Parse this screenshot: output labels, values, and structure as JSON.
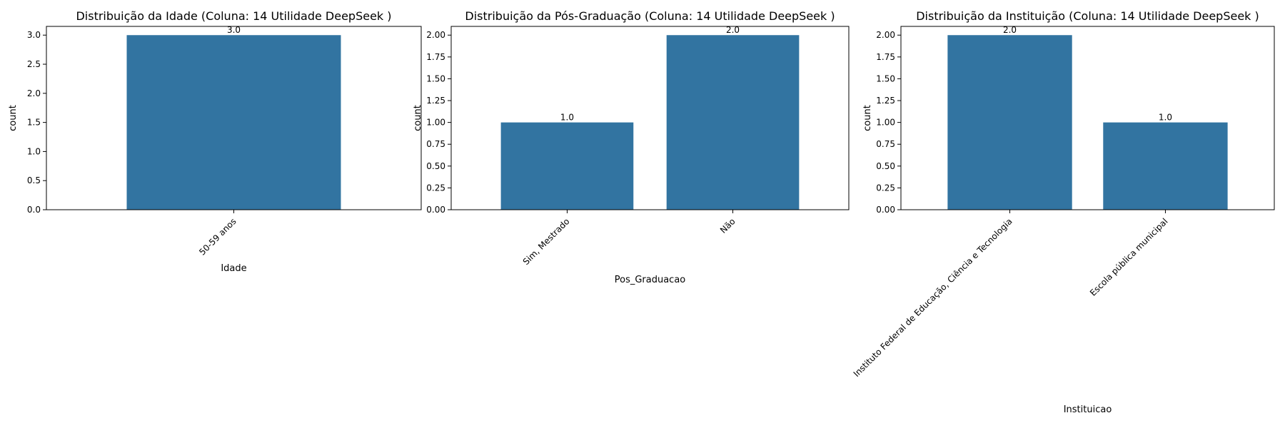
{
  "chart_data": [
    {
      "type": "bar",
      "title": "Distribuição da Idade (Coluna: 14 Utilidade DeepSeek )",
      "xlabel": "Idade",
      "ylabel": "count",
      "categories": [
        "50-59 anos"
      ],
      "values": [
        3.0
      ],
      "value_labels": [
        "3.0"
      ],
      "ylim": [
        0,
        3.15
      ],
      "yticks": [
        0,
        0.5,
        1.0,
        1.5,
        2.0,
        2.5,
        3.0
      ],
      "ytick_labels": [
        "0.0",
        "0.5",
        "1.0",
        "1.5",
        "2.0",
        "2.5",
        "3.0"
      ],
      "grid": false,
      "bar_color": "#3274a1"
    },
    {
      "type": "bar",
      "title": "Distribuição da Pós-Graduação (Coluna: 14 Utilidade DeepSeek )",
      "xlabel": "Pos_Graduacao",
      "ylabel": "count",
      "categories": [
        "Sim, Mestrado",
        "Não"
      ],
      "values": [
        1.0,
        2.0
      ],
      "value_labels": [
        "1.0",
        "2.0"
      ],
      "ylim": [
        0,
        2.1
      ],
      "yticks": [
        0,
        0.25,
        0.5,
        0.75,
        1.0,
        1.25,
        1.5,
        1.75,
        2.0
      ],
      "ytick_labels": [
        "0.00",
        "0.25",
        "0.50",
        "0.75",
        "1.00",
        "1.25",
        "1.50",
        "1.75",
        "2.00"
      ],
      "grid": false,
      "bar_color": "#3274a1"
    },
    {
      "type": "bar",
      "title": "Distribuição da Instituição (Coluna: 14 Utilidade DeepSeek )",
      "xlabel": "Instituicao",
      "ylabel": "count",
      "categories": [
        "Instituto Federal de Educação, Ciência e Tecnologia",
        "Escola pública municipal"
      ],
      "values": [
        2.0,
        1.0
      ],
      "value_labels": [
        "2.0",
        "1.0"
      ],
      "ylim": [
        0,
        2.1
      ],
      "yticks": [
        0,
        0.25,
        0.5,
        0.75,
        1.0,
        1.25,
        1.5,
        1.75,
        2.0
      ],
      "ytick_labels": [
        "0.00",
        "0.25",
        "0.50",
        "0.75",
        "1.00",
        "1.25",
        "1.50",
        "1.75",
        "2.00"
      ],
      "grid": false,
      "bar_color": "#3274a1"
    }
  ]
}
